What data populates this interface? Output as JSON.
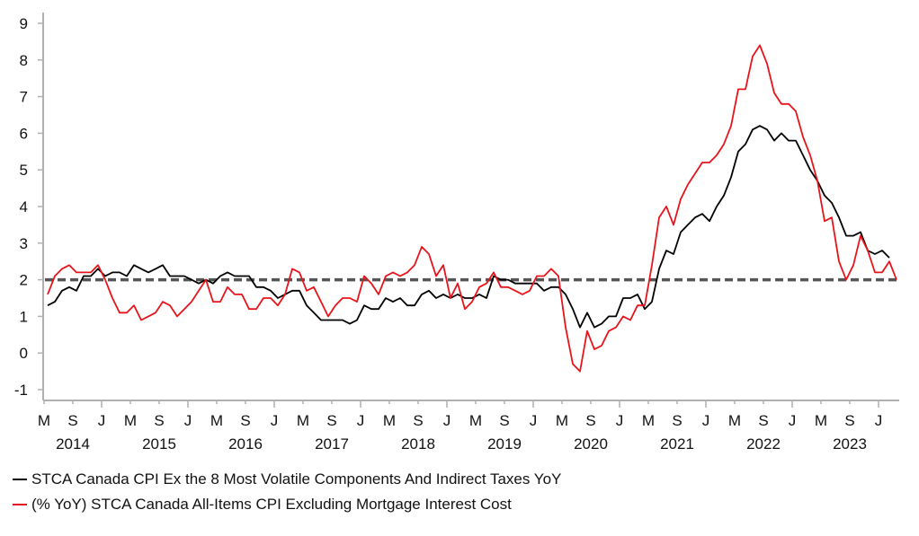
{
  "chart_data": {
    "type": "line",
    "title": "",
    "xlabel": "",
    "ylabel": "",
    "ylim": [
      -1.3,
      9.4
    ],
    "yticks": [
      "-1",
      "0",
      "1",
      "2",
      "3",
      "4",
      "5",
      "6",
      "7",
      "8",
      "9"
    ],
    "ytick_values": [
      -1,
      0,
      1,
      2,
      3,
      4,
      5,
      6,
      7,
      8,
      9
    ],
    "x_start": "2014-03",
    "x_frequency": "monthly",
    "x_month_ticks": [
      {
        "month_index": 2,
        "label": "M"
      },
      {
        "month_index": 6,
        "label": "S"
      },
      {
        "month_index": 10,
        "label": "J"
      },
      {
        "month_index": 14,
        "label": "M"
      },
      {
        "month_index": 18,
        "label": "S"
      },
      {
        "month_index": 22,
        "label": "J"
      },
      {
        "month_index": 26,
        "label": "M"
      },
      {
        "month_index": 30,
        "label": "S"
      },
      {
        "month_index": 34,
        "label": "J"
      },
      {
        "month_index": 38,
        "label": "M"
      },
      {
        "month_index": 42,
        "label": "S"
      },
      {
        "month_index": 46,
        "label": "J"
      },
      {
        "month_index": 50,
        "label": "M"
      },
      {
        "month_index": 54,
        "label": "S"
      },
      {
        "month_index": 58,
        "label": "J"
      },
      {
        "month_index": 62,
        "label": "M"
      },
      {
        "month_index": 66,
        "label": "S"
      },
      {
        "month_index": 70,
        "label": "J"
      },
      {
        "month_index": 74,
        "label": "M"
      },
      {
        "month_index": 78,
        "label": "S"
      },
      {
        "month_index": 82,
        "label": "J"
      },
      {
        "month_index": 86,
        "label": "M"
      },
      {
        "month_index": 90,
        "label": "S"
      },
      {
        "month_index": 94,
        "label": "J"
      },
      {
        "month_index": 98,
        "label": "M"
      },
      {
        "month_index": 102,
        "label": "S"
      },
      {
        "month_index": 106,
        "label": "J"
      },
      {
        "month_index": 110,
        "label": "M"
      },
      {
        "month_index": 114,
        "label": "S"
      },
      {
        "month_index": 118,
        "label": "J"
      }
    ],
    "x_year_labels": [
      {
        "month_index": 6,
        "label": "2014"
      },
      {
        "month_index": 18,
        "label": "2015"
      },
      {
        "month_index": 30,
        "label": "2016"
      },
      {
        "month_index": 42,
        "label": "2017"
      },
      {
        "month_index": 54,
        "label": "2018"
      },
      {
        "month_index": 66,
        "label": "2019"
      },
      {
        "month_index": 78,
        "label": "2020"
      },
      {
        "month_index": 90,
        "label": "2021"
      },
      {
        "month_index": 102,
        "label": "2022"
      },
      {
        "month_index": 114,
        "label": "2023"
      }
    ],
    "major_tick_month_indices": [
      10,
      22,
      34,
      46,
      58,
      70,
      82,
      94,
      106,
      118
    ],
    "reference_line": {
      "value": 2,
      "style": "dashed",
      "color": "#555555"
    },
    "series": [
      {
        "name": "STCA Canada CPI Ex the 8 Most Volatile Components And Indirect Taxes YoY",
        "color": "#000000",
        "values": [
          1.3,
          1.4,
          1.7,
          1.8,
          1.7,
          2.1,
          2.1,
          2.3,
          2.1,
          2.2,
          2.2,
          2.1,
          2.4,
          2.3,
          2.2,
          2.3,
          2.4,
          2.1,
          2.1,
          2.1,
          2.0,
          1.9,
          2.0,
          1.9,
          2.1,
          2.2,
          2.1,
          2.1,
          2.1,
          1.8,
          1.8,
          1.7,
          1.5,
          1.6,
          1.7,
          1.7,
          1.3,
          1.1,
          0.9,
          0.9,
          0.9,
          0.9,
          0.8,
          0.9,
          1.3,
          1.2,
          1.2,
          1.5,
          1.4,
          1.5,
          1.3,
          1.3,
          1.6,
          1.7,
          1.5,
          1.6,
          1.5,
          1.6,
          1.5,
          1.5,
          1.6,
          1.5,
          2.1,
          2.0,
          2.0,
          1.9,
          1.9,
          1.9,
          1.9,
          1.7,
          1.8,
          1.8,
          1.6,
          1.2,
          0.7,
          1.1,
          0.7,
          0.8,
          1.0,
          1.0,
          1.5,
          1.5,
          1.6,
          1.2,
          1.4,
          2.3,
          2.8,
          2.7,
          3.3,
          3.5,
          3.7,
          3.8,
          3.6,
          4.0,
          4.3,
          4.8,
          5.5,
          5.7,
          6.1,
          6.2,
          6.1,
          5.8,
          6.0,
          5.8,
          5.8,
          5.4,
          5.0,
          4.7,
          4.3,
          4.1,
          3.7,
          3.2,
          3.2,
          3.3,
          2.8,
          2.7,
          2.8,
          2.6
        ]
      },
      {
        "name": "(% YoY) STCA Canada All-Items CPI Excluding Mortgage Interest Cost",
        "color": "#e8141b",
        "values": [
          1.6,
          2.1,
          2.3,
          2.4,
          2.2,
          2.2,
          2.2,
          2.4,
          2.0,
          1.5,
          1.1,
          1.1,
          1.3,
          0.9,
          1.0,
          1.1,
          1.4,
          1.3,
          1.0,
          1.2,
          1.4,
          1.7,
          2.0,
          1.4,
          1.4,
          1.8,
          1.6,
          1.6,
          1.2,
          1.2,
          1.5,
          1.5,
          1.3,
          1.6,
          2.3,
          2.2,
          1.7,
          1.8,
          1.4,
          1.0,
          1.3,
          1.5,
          1.5,
          1.4,
          2.1,
          1.9,
          1.6,
          2.1,
          2.2,
          2.1,
          2.2,
          2.4,
          2.9,
          2.7,
          2.1,
          2.4,
          1.5,
          1.9,
          1.2,
          1.4,
          1.8,
          1.9,
          2.2,
          1.8,
          1.8,
          1.7,
          1.6,
          1.7,
          2.1,
          2.1,
          2.3,
          2.1,
          0.7,
          -0.3,
          -0.5,
          0.6,
          0.1,
          0.2,
          0.6,
          0.7,
          1.0,
          0.9,
          1.3,
          1.3,
          2.4,
          3.7,
          4.0,
          3.5,
          4.2,
          4.6,
          4.9,
          5.2,
          5.2,
          5.4,
          5.7,
          6.2,
          7.2,
          7.2,
          8.1,
          8.4,
          7.9,
          7.1,
          6.8,
          6.8,
          6.6,
          5.9,
          5.4,
          4.7,
          3.6,
          3.7,
          2.5,
          2.0,
          2.4,
          3.2,
          2.8,
          2.2,
          2.2,
          2.5,
          2.0
        ]
      }
    ],
    "legend": {
      "placement": "bottom-left",
      "entries": [
        {
          "label": "STCA Canada CPI Ex the 8 Most Volatile Components And Indirect Taxes YoY",
          "color": "#000000"
        },
        {
          "label": "(% YoY) STCA Canada All-Items CPI Excluding Mortgage Interest Cost",
          "color": "#e8141b"
        }
      ]
    },
    "grid": false
  }
}
